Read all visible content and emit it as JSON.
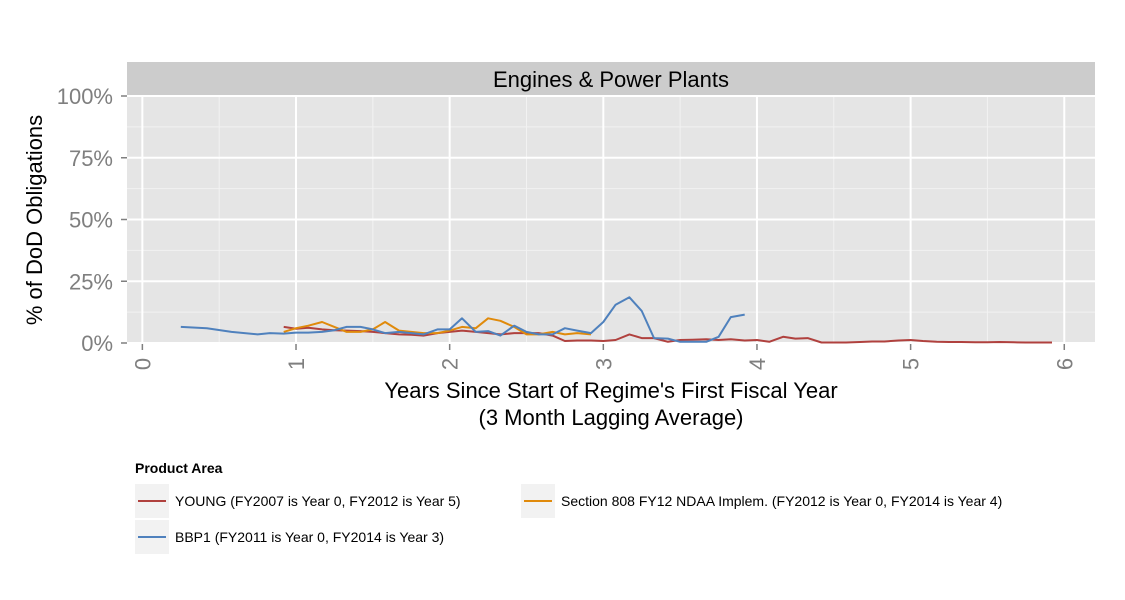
{
  "chart_data": {
    "type": "line",
    "facet_title": "Engines & Power Plants",
    "ylabel": "% of DoD Obligations",
    "xlabel_line1": "Years Since Start of Regime's First Fiscal Year",
    "xlabel_line2": "(3 Month Lagging Average)",
    "xlim": [
      -0.1,
      6.2
    ],
    "ylim": [
      0,
      1
    ],
    "x_ticks": [
      0,
      1,
      2,
      3,
      4,
      5,
      6
    ],
    "x_tick_labels": [
      "0",
      "1",
      "2",
      "3",
      "4",
      "5",
      "6"
    ],
    "y_ticks": [
      0,
      0.25,
      0.5,
      0.75,
      1.0
    ],
    "y_tick_labels": [
      "0%",
      "25%",
      "50%",
      "75%",
      "100%"
    ],
    "grid": true,
    "legend_title": "Product Area",
    "legend_position": "bottom",
    "series": [
      {
        "name": "YOUNG (FY2007 is Year 0, FY2012 is Year 5)",
        "color": "#b0413e",
        "x": [
          0.92,
          1.0,
          1.08,
          1.17,
          1.25,
          1.33,
          1.42,
          1.5,
          1.58,
          1.67,
          1.75,
          1.83,
          1.92,
          2.0,
          2.08,
          2.17,
          2.25,
          2.33,
          2.42,
          2.5,
          2.58,
          2.67,
          2.75,
          2.83,
          2.92,
          3.0,
          3.08,
          3.17,
          3.25,
          3.33,
          3.42,
          3.5,
          3.58,
          3.67,
          3.75,
          3.83,
          3.92,
          4.0,
          4.08,
          4.17,
          4.25,
          4.33,
          4.42,
          4.5,
          4.58,
          4.67,
          4.75,
          4.83,
          4.92,
          5.0,
          5.08,
          5.17,
          5.25,
          5.33,
          5.42,
          5.5,
          5.58,
          5.67,
          5.75,
          5.83,
          5.92
        ],
        "y": [
          0.065,
          0.058,
          0.062,
          0.055,
          0.052,
          0.05,
          0.048,
          0.045,
          0.04,
          0.035,
          0.033,
          0.03,
          0.04,
          0.045,
          0.05,
          0.045,
          0.04,
          0.035,
          0.04,
          0.04,
          0.04,
          0.03,
          0.008,
          0.01,
          0.01,
          0.008,
          0.012,
          0.035,
          0.02,
          0.02,
          0.005,
          0.012,
          0.013,
          0.015,
          0.012,
          0.015,
          0.01,
          0.012,
          0.005,
          0.025,
          0.018,
          0.02,
          0.002,
          0.002,
          0.002,
          0.004,
          0.006,
          0.006,
          0.01,
          0.012,
          0.008,
          0.005,
          0.004,
          0.004,
          0.003,
          0.003,
          0.004,
          0.003,
          0.002,
          0.002,
          0.002
        ]
      },
      {
        "name": "Section 808 FY12 NDAA Implem. (FY2012 is Year 0, FY2014 is Year 4)",
        "color": "#e08a0b",
        "x": [
          0.92,
          1.0,
          1.08,
          1.17,
          1.25,
          1.33,
          1.42,
          1.5,
          1.58,
          1.67,
          1.75,
          1.83,
          1.92,
          2.0,
          2.08,
          2.17,
          2.25,
          2.33,
          2.42,
          2.5,
          2.58,
          2.67,
          2.75,
          2.83,
          2.92
        ],
        "y": [
          0.045,
          0.06,
          0.07,
          0.085,
          0.065,
          0.045,
          0.045,
          0.055,
          0.085,
          0.05,
          0.045,
          0.04,
          0.04,
          0.05,
          0.065,
          0.06,
          0.1,
          0.09,
          0.065,
          0.035,
          0.035,
          0.045,
          0.035,
          0.04,
          0.035
        ]
      },
      {
        "name": "BBP1 (FY2011 is Year 0, FY2014 is Year 3)",
        "color": "#4f81bd",
        "x": [
          0.25,
          0.42,
          0.58,
          0.75,
          0.83,
          0.92,
          1.0,
          1.08,
          1.17,
          1.25,
          1.33,
          1.42,
          1.5,
          1.58,
          1.67,
          1.75,
          1.83,
          1.92,
          2.0,
          2.08,
          2.17,
          2.25,
          2.33,
          2.42,
          2.5,
          2.58,
          2.67,
          2.75,
          2.83,
          2.92,
          3.0,
          3.08,
          3.17,
          3.25,
          3.33,
          3.42,
          3.5,
          3.58,
          3.67,
          3.75,
          3.83,
          3.92
        ],
        "y": [
          0.065,
          0.06,
          0.045,
          0.035,
          0.04,
          0.038,
          0.042,
          0.042,
          0.045,
          0.052,
          0.065,
          0.065,
          0.055,
          0.04,
          0.045,
          0.04,
          0.035,
          0.055,
          0.055,
          0.1,
          0.045,
          0.048,
          0.03,
          0.07,
          0.045,
          0.035,
          0.035,
          0.06,
          0.05,
          0.04,
          0.085,
          0.155,
          0.185,
          0.13,
          0.02,
          0.018,
          0.005,
          0.005,
          0.005,
          0.025,
          0.105,
          0.115
        ]
      }
    ]
  }
}
